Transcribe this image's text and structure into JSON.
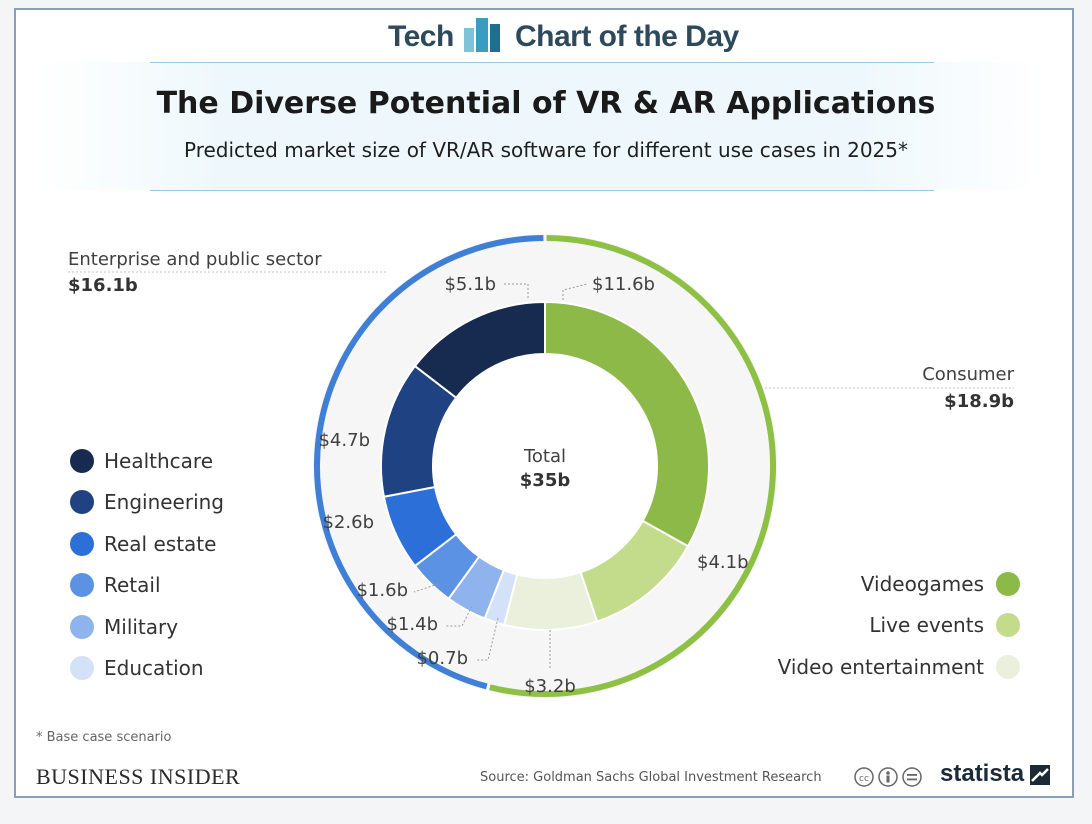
{
  "header": {
    "tech": "Tech",
    "chart_of_the_day": "Chart of the Day"
  },
  "chart_data": {
    "type": "pie",
    "title": "The Diverse Potential of VR & AR Applications",
    "subtitle": "Predicted market size of VR/AR software for different use cases in 2025*",
    "center_label": "Total",
    "center_value": "$35b",
    "total": 35,
    "groups": [
      {
        "name": "Enterprise and public sector",
        "value_label": "$16.1b",
        "value": 16.1,
        "color": "#3f7fd6"
      },
      {
        "name": "Consumer",
        "value_label": "$18.9b",
        "value": 18.9,
        "color": "#8ec045"
      }
    ],
    "slices": [
      {
        "name": "Videogames",
        "value": 11.6,
        "label": "$11.6b",
        "group": "Consumer",
        "color": "#8cb947"
      },
      {
        "name": "Live events",
        "value": 4.1,
        "label": "$4.1b",
        "group": "Consumer",
        "color": "#c2dc8c"
      },
      {
        "name": "Video entertainment",
        "value": 3.2,
        "label": "$3.2b",
        "group": "Consumer",
        "color": "#eaf0dc"
      },
      {
        "name": "Education",
        "value": 0.7,
        "label": "$0.7b",
        "group": "Enterprise and public sector",
        "color": "#d3e2f8"
      },
      {
        "name": "Military",
        "value": 1.4,
        "label": "$1.4b",
        "group": "Enterprise and public sector",
        "color": "#8fb3ec"
      },
      {
        "name": "Retail",
        "value": 1.6,
        "label": "$1.6b",
        "group": "Enterprise and public sector",
        "color": "#5b92e3"
      },
      {
        "name": "Real estate",
        "value": 2.6,
        "label": "$2.6b",
        "group": "Enterprise and public sector",
        "color": "#2d6fd8"
      },
      {
        "name": "Engineering",
        "value": 4.7,
        "label": "$4.7b",
        "group": "Enterprise and public sector",
        "color": "#1f4283"
      },
      {
        "name": "Healthcare",
        "value": 5.1,
        "label": "$5.1b",
        "group": "Enterprise and public sector",
        "color": "#172a4f"
      }
    ]
  },
  "legend_left": [
    {
      "label": "Healthcare",
      "color": "#172a4f"
    },
    {
      "label": "Engineering",
      "color": "#1f4283"
    },
    {
      "label": "Real estate",
      "color": "#2d6fd8"
    },
    {
      "label": "Retail",
      "color": "#5b92e3"
    },
    {
      "label": "Military",
      "color": "#8fb3ec"
    },
    {
      "label": "Education",
      "color": "#d3e2f8"
    }
  ],
  "legend_right": [
    {
      "label": "Videogames",
      "color": "#8cb947"
    },
    {
      "label": "Live events",
      "color": "#c2dc8c"
    },
    {
      "label": "Video entertainment",
      "color": "#eaf0dc"
    }
  ],
  "footer": {
    "footnote": "* Base case scenario",
    "publisher": "BUSINESS INSIDER",
    "source": "Source: Goldman Sachs Global Investment Research",
    "brand": "statista"
  }
}
